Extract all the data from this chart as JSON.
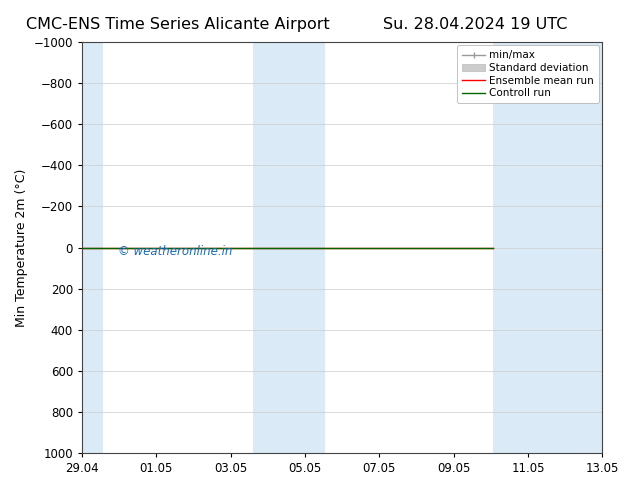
{
  "title": "CMC-ENS Time Series Alicante Airport",
  "title_right": "Su. 28.04.2024 19 UTC",
  "ylabel": "Min Temperature 2m (°C)",
  "watermark": "© weatheronline.in",
  "xlim_left": 0,
  "xlim_right": 14,
  "ylim_top": -1000,
  "ylim_bottom": 1000,
  "yticks": [
    -1000,
    -800,
    -600,
    -400,
    -200,
    0,
    200,
    400,
    600,
    800,
    1000
  ],
  "xtick_labels": [
    "29.04",
    "01.05",
    "03.05",
    "05.05",
    "07.05",
    "09.05",
    "11.05",
    "13.05"
  ],
  "xtick_positions": [
    0,
    2,
    4,
    6,
    8,
    10,
    12,
    14
  ],
  "shaded_bands": [
    {
      "x_start": 0.0,
      "x_end": 0.55,
      "color": "#daeaf7"
    },
    {
      "x_start": 4.6,
      "x_end": 6.55,
      "color": "#daeaf7"
    },
    {
      "x_start": 11.05,
      "x_end": 14.0,
      "color": "#daeaf7"
    }
  ],
  "green_line_x": [
    0,
    11.05
  ],
  "green_line_y": [
    0,
    0
  ],
  "red_line_x": [
    0,
    11.05
  ],
  "red_line_y": [
    0,
    0
  ],
  "background_color": "#ffffff",
  "plot_bg_color": "#ffffff",
  "grid_color": "#cccccc",
  "legend_items": [
    {
      "label": "min/max",
      "color": "#999999",
      "lw": 1.0
    },
    {
      "label": "Standard deviation",
      "color": "#cccccc",
      "lw": 6
    },
    {
      "label": "Ensemble mean run",
      "color": "#ff0000",
      "lw": 1.0
    },
    {
      "label": "Controll run",
      "color": "#006600",
      "lw": 1.0
    }
  ],
  "watermark_color": "#1a6bb5",
  "title_fontsize": 11.5,
  "axis_fontsize": 9,
  "tick_fontsize": 8.5,
  "legend_fontsize": 7.5,
  "watermark_fontsize": 8.5
}
